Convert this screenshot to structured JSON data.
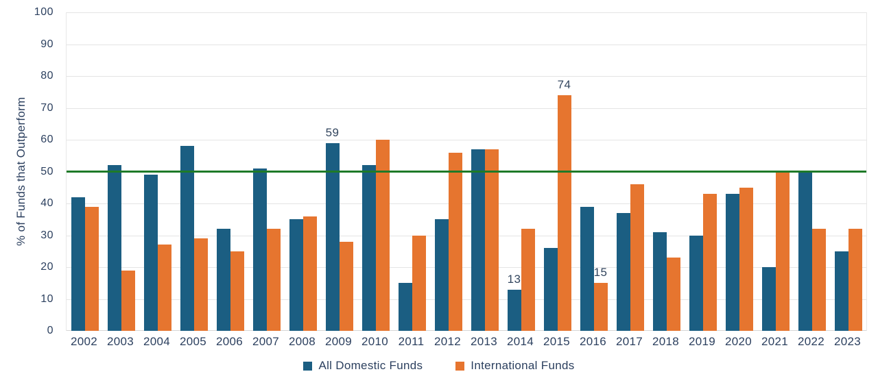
{
  "chart_data": {
    "type": "bar",
    "ylabel": "% of Funds that Outperform",
    "ylim": [
      0,
      100
    ],
    "yticks": [
      0,
      10,
      20,
      30,
      40,
      50,
      60,
      70,
      80,
      90,
      100
    ],
    "grid": "horizontal",
    "legend_position": "bottom-center",
    "categories": [
      "2002",
      "2003",
      "2004",
      "2005",
      "2006",
      "2007",
      "2008",
      "2009",
      "2010",
      "2011",
      "2012",
      "2013",
      "2014",
      "2015",
      "2016",
      "2017",
      "2018",
      "2019",
      "2020",
      "2021",
      "2022",
      "2023"
    ],
    "series": [
      {
        "name": "All Domestic Funds",
        "color": "#1B5E82",
        "values": [
          42,
          52,
          49,
          58,
          32,
          51,
          35,
          59,
          52,
          15,
          35,
          57,
          13,
          26,
          39,
          37,
          31,
          30,
          43,
          20,
          50,
          25
        ]
      },
      {
        "name": "International Funds",
        "color": "#E6752F",
        "values": [
          39,
          19,
          27,
          29,
          25,
          32,
          36,
          28,
          60,
          30,
          56,
          57,
          32,
          74,
          15,
          46,
          23,
          43,
          45,
          50,
          32,
          32
        ]
      }
    ],
    "reference_line": {
      "value": 50,
      "color": "#1E7A28"
    },
    "annotations": [
      {
        "category": "2009",
        "series": "All Domestic Funds",
        "text": "59"
      },
      {
        "category": "2014",
        "series": "All Domestic Funds",
        "text": "13"
      },
      {
        "category": "2015",
        "series": "International Funds",
        "text": "74"
      },
      {
        "category": "2016",
        "series": "International Funds",
        "text": "15"
      }
    ]
  },
  "colors": {
    "text": "#2B3F5E",
    "grid": "#E4E4E4",
    "baseline": "#D6D6D6",
    "background": "#FFFFFF"
  }
}
